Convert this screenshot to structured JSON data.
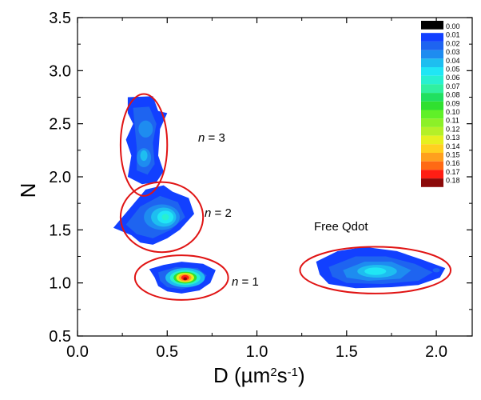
{
  "chart_data": {
    "type": "contour",
    "title": "",
    "xlabel": "D (µm²s⁻¹)",
    "ylabel": "N",
    "xlim": [
      0.0,
      2.2
    ],
    "ylim": [
      0.5,
      3.5
    ],
    "x_ticks": [
      "0.0",
      "0.5",
      "1.0",
      "1.5",
      "2.0"
    ],
    "y_ticks": [
      "0.5",
      "1.0",
      "1.5",
      "2.0",
      "2.5",
      "3.0",
      "3.5"
    ],
    "x_tick_values": [
      0.0,
      0.5,
      1.0,
      1.5,
      2.0
    ],
    "y_tick_values": [
      0.5,
      1.0,
      1.5,
      2.0,
      2.5,
      3.0,
      3.5
    ],
    "colorscale": {
      "levels": [
        "0.00",
        "0.01",
        "0.02",
        "0.03",
        "0.04",
        "0.05",
        "0.06",
        "0.07",
        "0.08",
        "0.09",
        "0.10",
        "0.11",
        "0.12",
        "0.13",
        "0.14",
        "0.15",
        "0.16",
        "0.17",
        "0.18"
      ],
      "colors": [
        "#000000",
        "#1240ff",
        "#1e64f0",
        "#1e8cf0",
        "#1ebef0",
        "#20e6f5",
        "#28f0d0",
        "#30f0a0",
        "#20e060",
        "#30e030",
        "#60f028",
        "#8cf028",
        "#b4f028",
        "#e6f020",
        "#ffd020",
        "#ffa01e",
        "#ff6a14",
        "#ff1e14",
        "#8c0a0a"
      ]
    },
    "clusters": [
      {
        "name": "n = 3",
        "label": "n = 3",
        "center": [
          0.37,
          2.3
        ],
        "peak_density": 0.04
      },
      {
        "name": "n = 2",
        "label": "n = 2",
        "center": [
          0.47,
          1.62
        ],
        "peak_density": 0.06
      },
      {
        "name": "n = 1",
        "label": "n = 1",
        "center": [
          0.6,
          1.05
        ],
        "peak_density": 0.18
      },
      {
        "name": "Free Qdot",
        "label": "Free Qdot",
        "center": [
          1.65,
          1.15
        ],
        "peak_density": 0.05
      }
    ],
    "annotations": [
      "n = 3",
      "n = 2",
      "n = 1",
      "Free Qdot"
    ]
  }
}
